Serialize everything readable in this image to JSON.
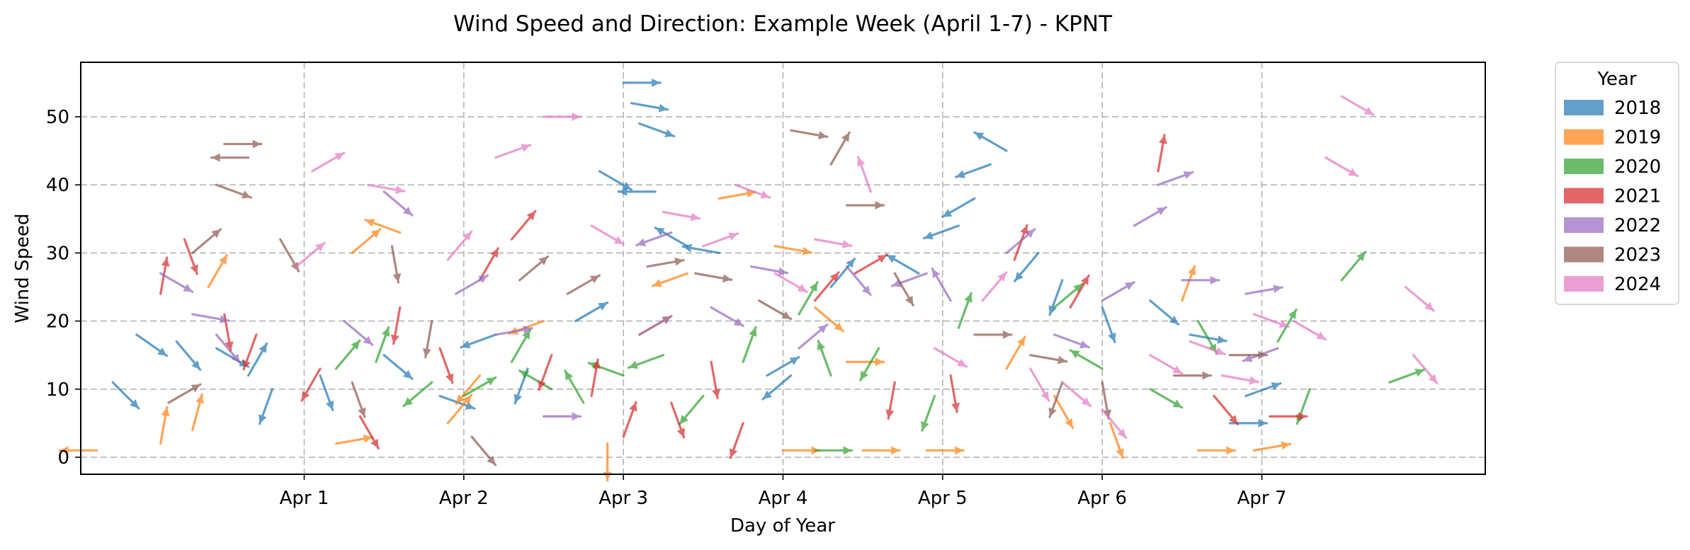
{
  "chart_data": {
    "type": "quiver",
    "title": "Wind Speed and Direction: Example Week (April 1-7) - KPNT",
    "xlabel": "Day of Year",
    "ylabel": "Wind Speed",
    "xlim": [
      -1.4,
      7.4
    ],
    "ylim": [
      -2.5,
      58
    ],
    "x_ticks": [
      {
        "value": 0,
        "label": "Apr 1"
      },
      {
        "value": 1,
        "label": "Apr 2"
      },
      {
        "value": 2,
        "label": "Apr 3"
      },
      {
        "value": 3,
        "label": "Apr 4"
      },
      {
        "value": 4,
        "label": "Apr 5"
      },
      {
        "value": 5,
        "label": "Apr 6"
      },
      {
        "value": 6,
        "label": "Apr 7"
      }
    ],
    "y_ticks": [
      0,
      10,
      20,
      30,
      40,
      50
    ],
    "grid": true,
    "legend": {
      "title": "Year",
      "placement": "outside-right"
    },
    "series": [
      {
        "name": "2018",
        "color": "#1f77b4"
      },
      {
        "name": "2019",
        "color": "#ff7f0e"
      },
      {
        "name": "2020",
        "color": "#2ca02c"
      },
      {
        "name": "2021",
        "color": "#d62728"
      },
      {
        "name": "2022",
        "color": "#9467bd"
      },
      {
        "name": "2023",
        "color": "#8c564b"
      },
      {
        "name": "2024",
        "color": "#e377c2"
      }
    ],
    "vectors": [
      [
        -1.2,
        11,
        135,
        0
      ],
      [
        -1.05,
        18,
        125,
        0
      ],
      [
        -0.8,
        17,
        140,
        0
      ],
      [
        -0.55,
        16,
        120,
        0
      ],
      [
        -0.35,
        12,
        30,
        0
      ],
      [
        -0.2,
        10,
        200,
        0
      ],
      [
        0.1,
        12,
        160,
        0
      ],
      [
        0.5,
        15,
        130,
        0
      ],
      [
        0.85,
        9,
        110,
        0
      ],
      [
        1.2,
        18,
        250,
        0
      ],
      [
        1.4,
        13,
        200,
        0
      ],
      [
        1.7,
        20,
        60,
        0
      ],
      [
        1.85,
        42,
        120,
        0
      ],
      [
        2.0,
        55,
        90,
        0
      ],
      [
        2.05,
        52,
        100,
        0
      ],
      [
        2.1,
        49,
        110,
        0
      ],
      [
        2.2,
        39,
        270,
        0
      ],
      [
        2.4,
        31,
        300,
        0
      ],
      [
        2.6,
        30,
        280,
        0
      ],
      [
        2.9,
        12,
        60,
        0
      ],
      [
        3.05,
        12,
        230,
        0
      ],
      [
        3.3,
        25,
        40,
        0
      ],
      [
        4.2,
        38,
        240,
        0
      ],
      [
        4.3,
        43,
        250,
        0
      ],
      [
        4.4,
        45,
        300,
        0
      ],
      [
        4.6,
        30,
        220,
        0
      ],
      [
        4.75,
        26,
        200,
        0
      ],
      [
        5.0,
        22,
        160,
        0
      ],
      [
        5.3,
        23,
        130,
        0
      ],
      [
        5.55,
        18,
        100,
        0
      ],
      [
        5.8,
        5,
        90,
        0
      ],
      [
        5.9,
        9,
        70,
        0
      ],
      [
        4.1,
        34,
        250,
        0
      ],
      [
        3.85,
        27,
        300,
        0
      ],
      [
        -1.3,
        1,
        270,
        1
      ],
      [
        -0.9,
        2,
        10,
        1
      ],
      [
        -0.7,
        4,
        15,
        1
      ],
      [
        -0.6,
        25,
        30,
        1
      ],
      [
        0.3,
        30,
        50,
        1
      ],
      [
        0.6,
        33,
        290,
        1
      ],
      [
        1.1,
        12,
        220,
        1
      ],
      [
        1.5,
        20,
        250,
        1
      ],
      [
        2.1,
        18,
        60,
        1
      ],
      [
        2.4,
        27,
        250,
        1
      ],
      [
        2.6,
        38,
        80,
        1
      ],
      [
        2.95,
        31,
        100,
        1
      ],
      [
        3.2,
        22,
        130,
        1
      ],
      [
        3.4,
        14,
        90,
        1
      ],
      [
        4.4,
        13,
        30,
        1
      ],
      [
        4.7,
        9,
        150,
        1
      ],
      [
        5.05,
        5,
        160,
        1
      ],
      [
        5.5,
        23,
        20,
        1
      ],
      [
        5.6,
        1,
        90,
        1
      ],
      [
        5.95,
        1,
        80,
        1
      ],
      [
        0.2,
        2,
        80,
        1
      ],
      [
        0.9,
        5,
        40,
        1
      ],
      [
        1.9,
        2,
        180,
        1
      ],
      [
        3.0,
        1,
        90,
        1
      ],
      [
        3.5,
        1,
        90,
        1
      ],
      [
        3.9,
        1,
        90,
        1
      ],
      [
        0.2,
        13,
        40,
        2
      ],
      [
        0.45,
        14,
        20,
        2
      ],
      [
        0.8,
        11,
        230,
        2
      ],
      [
        1.0,
        9,
        60,
        2
      ],
      [
        1.3,
        14,
        30,
        2
      ],
      [
        1.55,
        10,
        300,
        2
      ],
      [
        1.75,
        8,
        330,
        2
      ],
      [
        2.0,
        12,
        290,
        2
      ],
      [
        2.25,
        15,
        250,
        2
      ],
      [
        2.5,
        9,
        220,
        2
      ],
      [
        2.75,
        14,
        20,
        2
      ],
      [
        3.1,
        21,
        30,
        2
      ],
      [
        3.3,
        12,
        340,
        2
      ],
      [
        3.6,
        16,
        210,
        2
      ],
      [
        3.95,
        9,
        200,
        2
      ],
      [
        4.1,
        19,
        20,
        2
      ],
      [
        4.7,
        22,
        50,
        2
      ],
      [
        5.0,
        13,
        300,
        2
      ],
      [
        5.3,
        10,
        120,
        2
      ],
      [
        5.6,
        20,
        150,
        2
      ],
      [
        6.1,
        17,
        30,
        2
      ],
      [
        6.5,
        26,
        40,
        2
      ],
      [
        6.8,
        11,
        70,
        2
      ],
      [
        6.3,
        10,
        200,
        2
      ],
      [
        3.2,
        1,
        90,
        2
      ],
      [
        -0.9,
        24,
        10,
        3
      ],
      [
        -0.75,
        32,
        160,
        3
      ],
      [
        -0.5,
        21,
        170,
        3
      ],
      [
        -0.3,
        18,
        200,
        3
      ],
      [
        0.1,
        13,
        210,
        3
      ],
      [
        0.35,
        6,
        150,
        3
      ],
      [
        0.6,
        22,
        190,
        3
      ],
      [
        0.85,
        16,
        160,
        3
      ],
      [
        1.1,
        26,
        30,
        3
      ],
      [
        1.3,
        32,
        40,
        3
      ],
      [
        1.55,
        15,
        200,
        3
      ],
      [
        1.8,
        9,
        10,
        3
      ],
      [
        2.0,
        3,
        20,
        3
      ],
      [
        2.3,
        8,
        160,
        3
      ],
      [
        2.55,
        14,
        170,
        3
      ],
      [
        2.75,
        5,
        200,
        3
      ],
      [
        3.2,
        23,
        40,
        3
      ],
      [
        3.45,
        27,
        60,
        3
      ],
      [
        3.7,
        11,
        190,
        3
      ],
      [
        4.05,
        12,
        170,
        3
      ],
      [
        4.45,
        29,
        20,
        3
      ],
      [
        4.8,
        22,
        30,
        3
      ],
      [
        5.35,
        42,
        10,
        3
      ],
      [
        5.7,
        9,
        140,
        3
      ],
      [
        6.05,
        6,
        90,
        3
      ],
      [
        -0.9,
        27,
        120,
        4
      ],
      [
        -0.7,
        21,
        100,
        4
      ],
      [
        -0.55,
        18,
        140,
        4
      ],
      [
        0.25,
        20,
        130,
        4
      ],
      [
        0.5,
        39,
        130,
        4
      ],
      [
        0.95,
        24,
        60,
        4
      ],
      [
        1.2,
        18,
        80,
        4
      ],
      [
        1.5,
        6,
        90,
        4
      ],
      [
        2.1,
        18,
        60,
        4
      ],
      [
        2.3,
        33,
        250,
        4
      ],
      [
        2.55,
        22,
        120,
        4
      ],
      [
        2.8,
        28,
        100,
        4
      ],
      [
        3.1,
        16,
        50,
        4
      ],
      [
        3.4,
        28,
        140,
        4
      ],
      [
        3.9,
        27,
        250,
        4
      ],
      [
        4.05,
        23,
        330,
        4
      ],
      [
        4.4,
        30,
        50,
        4
      ],
      [
        4.7,
        18,
        110,
        4
      ],
      [
        5.0,
        23,
        60,
        4
      ],
      [
        5.2,
        34,
        60,
        4
      ],
      [
        5.35,
        40,
        70,
        4
      ],
      [
        5.5,
        26,
        90,
        4
      ],
      [
        5.9,
        24,
        80,
        4
      ],
      [
        6.1,
        16,
        250,
        4
      ],
      [
        -0.85,
        8,
        60,
        5
      ],
      [
        -0.7,
        30,
        50,
        5
      ],
      [
        -0.55,
        40,
        110,
        5
      ],
      [
        -0.5,
        46,
        90,
        5
      ],
      [
        -0.35,
        44,
        270,
        5
      ],
      [
        -0.15,
        32,
        150,
        5
      ],
      [
        0.3,
        11,
        160,
        5
      ],
      [
        0.55,
        31,
        170,
        5
      ],
      [
        0.8,
        20,
        190,
        5
      ],
      [
        1.05,
        3,
        140,
        5
      ],
      [
        1.35,
        26,
        50,
        5
      ],
      [
        1.65,
        24,
        60,
        5
      ],
      [
        2.15,
        28,
        80,
        5
      ],
      [
        2.45,
        27,
        100,
        5
      ],
      [
        2.85,
        23,
        120,
        5
      ],
      [
        3.05,
        48,
        100,
        5
      ],
      [
        3.3,
        43,
        30,
        5
      ],
      [
        3.7,
        27,
        150,
        5
      ],
      [
        4.2,
        18,
        90,
        5
      ],
      [
        4.55,
        15,
        100,
        5
      ],
      [
        4.75,
        11,
        200,
        5
      ],
      [
        5.0,
        11,
        170,
        5
      ],
      [
        5.45,
        12,
        90,
        5
      ],
      [
        5.8,
        15,
        90,
        5
      ],
      [
        3.4,
        37,
        90,
        5
      ],
      [
        -0.05,
        28,
        50,
        6
      ],
      [
        0.05,
        42,
        60,
        6
      ],
      [
        0.4,
        40,
        100,
        6
      ],
      [
        0.9,
        29,
        40,
        6
      ],
      [
        1.2,
        44,
        70,
        6
      ],
      [
        1.5,
        50,
        90,
        6
      ],
      [
        1.8,
        34,
        120,
        6
      ],
      [
        2.25,
        36,
        100,
        6
      ],
      [
        2.5,
        31,
        70,
        6
      ],
      [
        2.7,
        40,
        110,
        6
      ],
      [
        2.95,
        27,
        120,
        6
      ],
      [
        3.2,
        32,
        100,
        6
      ],
      [
        3.55,
        39,
        340,
        6
      ],
      [
        3.95,
        16,
        120,
        6
      ],
      [
        4.25,
        23,
        40,
        6
      ],
      [
        4.55,
        13,
        150,
        6
      ],
      [
        4.75,
        11,
        130,
        6
      ],
      [
        5.0,
        7,
        140,
        6
      ],
      [
        5.3,
        15,
        120,
        6
      ],
      [
        5.55,
        17,
        110,
        6
      ],
      [
        5.95,
        21,
        110,
        6
      ],
      [
        6.2,
        20,
        120,
        6
      ],
      [
        6.4,
        44,
        120,
        6
      ],
      [
        6.5,
        53,
        120,
        6
      ],
      [
        6.9,
        25,
        130,
        6
      ],
      [
        6.95,
        15,
        140,
        6
      ],
      [
        5.75,
        12,
        100,
        6
      ]
    ]
  }
}
